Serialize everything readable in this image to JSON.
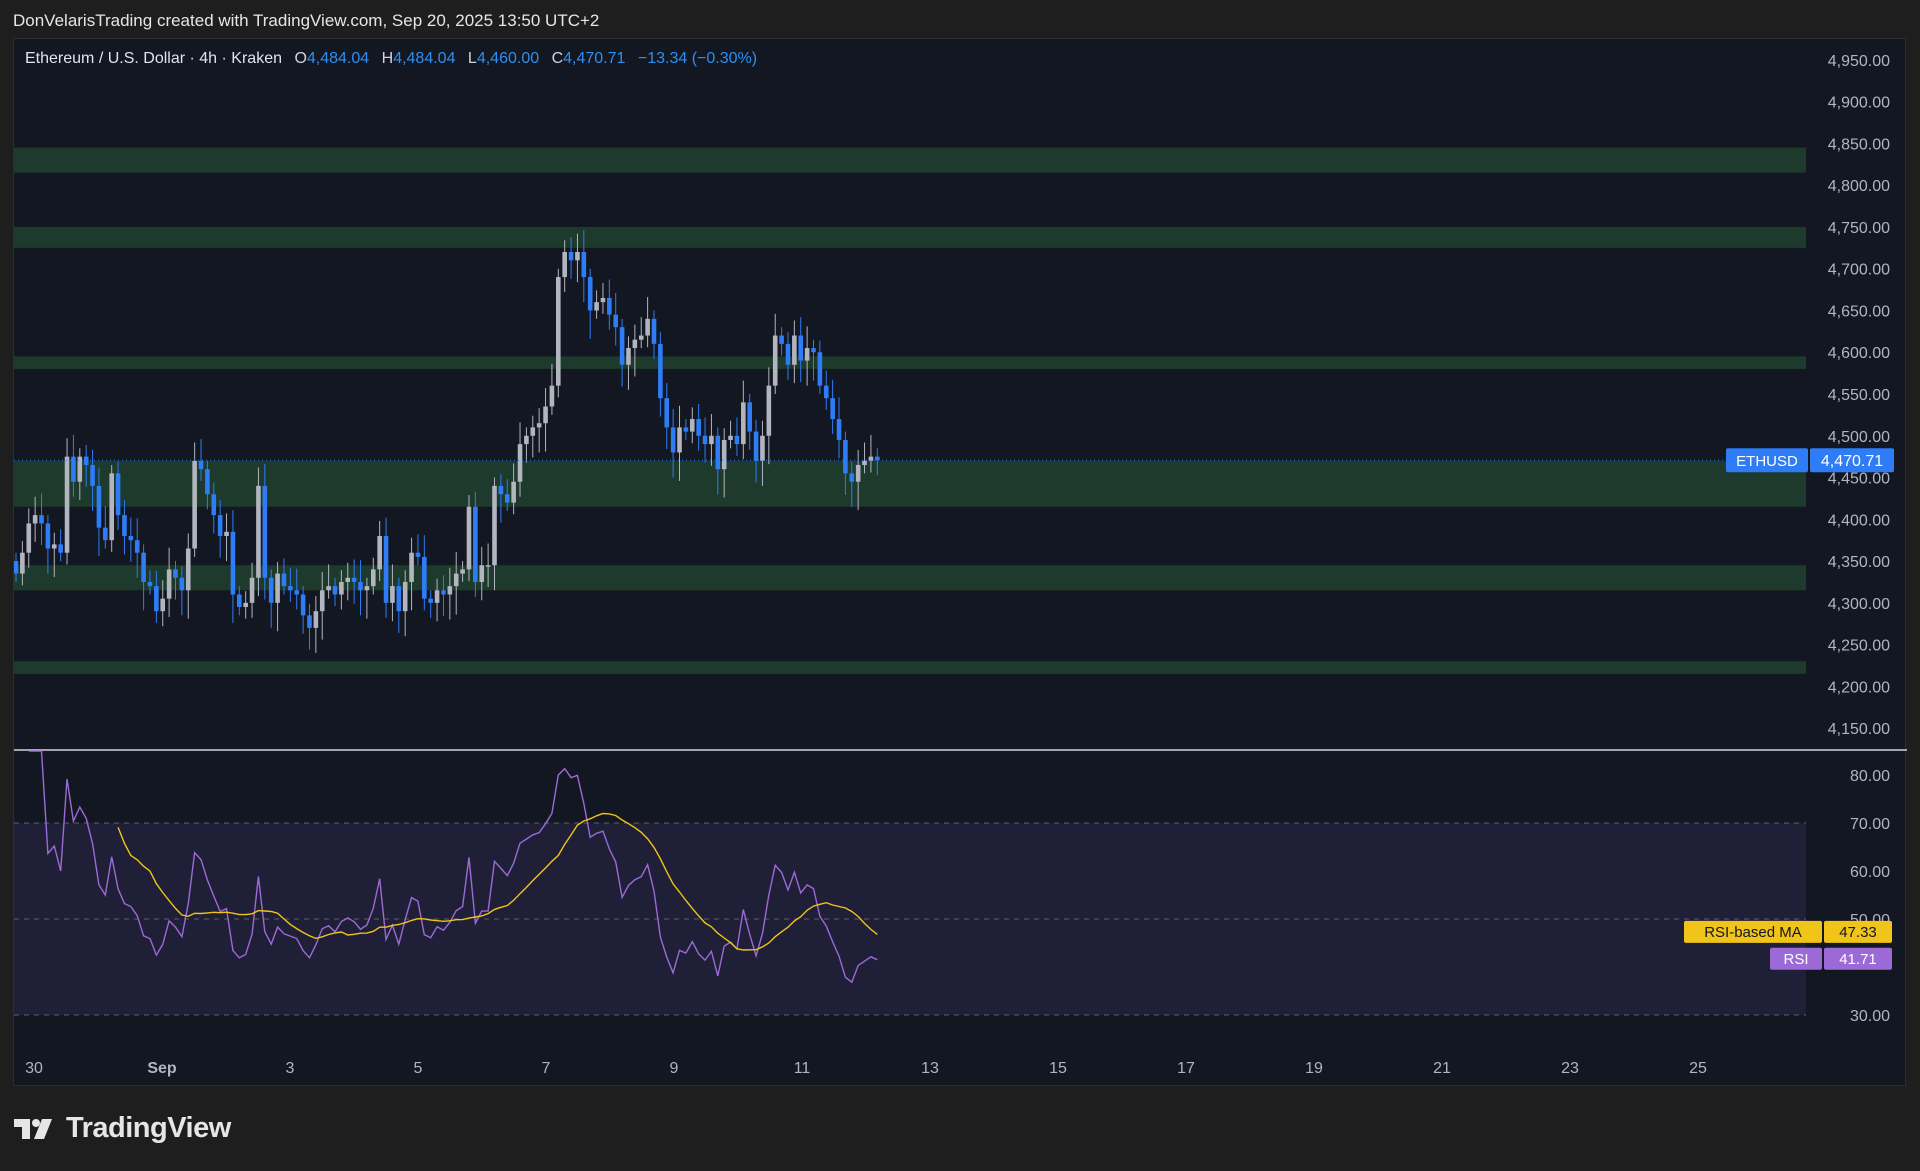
{
  "header": {
    "attribution": "DonVelarisTrading created with TradingView.com, Sep 20, 2025 13:50 UTC+2"
  },
  "legend": {
    "symbol": "Ethereum / U.S. Dollar · 4h · Kraken",
    "open_label": "O",
    "open": "4,484.04",
    "high_label": "H",
    "high": "4,484.04",
    "low_label": "L",
    "low": "4,460.00",
    "close_label": "C",
    "close": "4,470.71",
    "change": "−13.34 (−0.30%)"
  },
  "footer": {
    "brand": "TradingView"
  },
  "colors": {
    "background": "#131722",
    "up": "#b2b5be",
    "down": "#2e7cf6",
    "zone": "#1e3a2c",
    "rsi": "#9c6ad6",
    "rsi_ma": "#f0c419",
    "price_tag": "#2e7cf6"
  },
  "chart_data": [
    {
      "type": "candlestick",
      "title": "Ethereum / U.S. Dollar · 4h · Kraken",
      "timeframe": "4h",
      "ylim": [
        4125,
        4975
      ],
      "y_ticks": [
        "4,950.00",
        "4,900.00",
        "4,850.00",
        "4,800.00",
        "4,750.00",
        "4,700.00",
        "4,650.00",
        "4,600.00",
        "4,550.00",
        "4,500.00",
        "4,450.00",
        "4,400.00",
        "4,350.00",
        "4,300.00",
        "4,250.00",
        "4,200.00",
        "4,150.00"
      ],
      "x_ticks": [
        "30",
        "Sep",
        "3",
        "5",
        "7",
        "9",
        "11",
        "13",
        "15",
        "17",
        "19",
        "21",
        "23",
        "25"
      ],
      "last_price": {
        "label": "ETHUSD",
        "value": "4,470.71",
        "price": 4470.71
      },
      "zones": [
        [
          4815,
          4845
        ],
        [
          4725,
          4750
        ],
        [
          4580,
          4595
        ],
        [
          4415,
          4470
        ],
        [
          4315,
          4345
        ],
        [
          4215,
          4230
        ]
      ],
      "closes": [
        4335,
        4360,
        4395,
        4405,
        4395,
        4365,
        4370,
        4360,
        4475,
        4445,
        4475,
        4465,
        4440,
        4390,
        4375,
        4455,
        4405,
        4380,
        4375,
        4360,
        4325,
        4320,
        4290,
        4305,
        4340,
        4330,
        4315,
        4365,
        4470,
        4460,
        4430,
        4405,
        4380,
        4385,
        4310,
        4295,
        4300,
        4330,
        4440,
        4330,
        4300,
        4335,
        4320,
        4315,
        4310,
        4285,
        4270,
        4290,
        4315,
        4320,
        4310,
        4325,
        4330,
        4325,
        4315,
        4320,
        4340,
        4380,
        4300,
        4320,
        4290,
        4325,
        4360,
        4355,
        4305,
        4300,
        4315,
        4310,
        4320,
        4335,
        4340,
        4415,
        4325,
        4345,
        4345,
        4440,
        4430,
        4420,
        4445,
        4490,
        4500,
        4510,
        4515,
        4535,
        4560,
        4690,
        4720,
        4710,
        4720,
        4690,
        4650,
        4660,
        4665,
        4645,
        4630,
        4585,
        4605,
        4615,
        4620,
        4640,
        4610,
        4545,
        4510,
        4480,
        4510,
        4505,
        4520,
        4500,
        4490,
        4500,
        4460,
        4495,
        4500,
        4490,
        4540,
        4505,
        4470,
        4500,
        4560,
        4620,
        4610,
        4585,
        4620,
        4590,
        4605,
        4600,
        4560,
        4545,
        4520,
        4495,
        4455,
        4445,
        4465,
        4470,
        4475,
        4470.71
      ],
      "rsi": {
        "name": "RSI",
        "value": "41.71",
        "ma_name": "RSI-based MA",
        "ma_value": "47.33",
        "levels": [
          70,
          50,
          30
        ],
        "ticks": [
          "80.00",
          "70.00",
          "60.00",
          "50.00",
          "30.00"
        ],
        "ylim": [
          25,
          85
        ]
      }
    }
  ]
}
